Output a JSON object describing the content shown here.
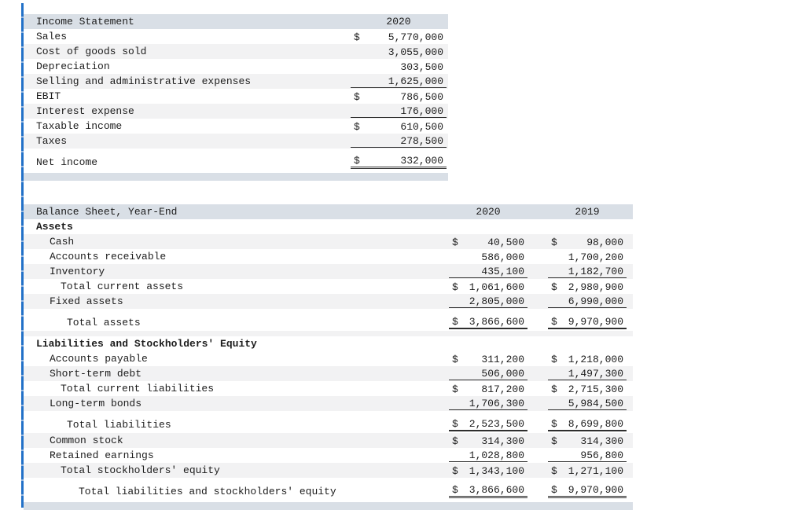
{
  "accent_colors": {
    "left_line_blue": "#2271c8",
    "header_band": "#d9dfe6",
    "row_stripe": "#f2f2f3"
  },
  "income_statement": {
    "title": "Income Statement",
    "year": "2020",
    "rows": [
      {
        "label": "Sales",
        "indent": 0,
        "values": [
          {
            "d": true,
            "v": "5,770,000"
          }
        ]
      },
      {
        "label": "Cost of goods sold",
        "indent": 0,
        "values": [
          {
            "d": false,
            "v": "3,055,000"
          }
        ]
      },
      {
        "label": "Depreciation",
        "indent": 0,
        "values": [
          {
            "d": false,
            "v": "303,500"
          }
        ]
      },
      {
        "label": "Selling and administrative expenses",
        "indent": 0,
        "values": [
          {
            "d": false,
            "v": "1,625,000",
            "u": "s"
          }
        ]
      },
      {
        "label": "EBIT",
        "indent": 0,
        "values": [
          {
            "d": true,
            "v": "786,500"
          }
        ]
      },
      {
        "label": "Interest expense",
        "indent": 0,
        "values": [
          {
            "d": false,
            "v": "176,000",
            "u": "s"
          }
        ]
      },
      {
        "label": "Taxable income",
        "indent": 0,
        "values": [
          {
            "d": true,
            "v": "610,500"
          }
        ]
      },
      {
        "label": "Taxes",
        "indent": 0,
        "values": [
          {
            "d": false,
            "v": "278,500",
            "u": "s"
          }
        ]
      },
      {
        "label": "Net income",
        "indent": 0,
        "gap": true,
        "tall": true,
        "values": [
          {
            "d": true,
            "v": "332,000",
            "u": "d"
          }
        ]
      }
    ]
  },
  "balance_sheet": {
    "title": "Balance Sheet, Year-End",
    "years": [
      "2020",
      "2019"
    ],
    "rows": [
      {
        "label": "Assets",
        "bold": true,
        "indent": 0,
        "values": [
          {},
          {}
        ]
      },
      {
        "label": "Cash",
        "indent": 1,
        "values": [
          {
            "d": true,
            "v": "40,500"
          },
          {
            "d": true,
            "v": "98,000"
          }
        ]
      },
      {
        "label": "Accounts receivable",
        "indent": 1,
        "values": [
          {
            "d": false,
            "v": "586,000"
          },
          {
            "d": false,
            "v": "1,700,200"
          }
        ]
      },
      {
        "label": "Inventory",
        "indent": 1,
        "values": [
          {
            "d": false,
            "v": "435,100",
            "u": "s"
          },
          {
            "d": false,
            "v": "1,182,700",
            "u": "s"
          }
        ]
      },
      {
        "label": "Total current assets",
        "indent": 2,
        "values": [
          {
            "d": true,
            "v": "1,061,600"
          },
          {
            "d": true,
            "v": "2,980,900"
          }
        ]
      },
      {
        "label": "Fixed assets",
        "indent": 1,
        "values": [
          {
            "d": false,
            "v": "2,805,000",
            "u": "s"
          },
          {
            "d": false,
            "v": "6,990,000",
            "u": "s"
          }
        ]
      },
      {
        "label": "Total assets",
        "indent": 3,
        "gap": true,
        "tall": true,
        "values": [
          {
            "d": true,
            "v": "3,866,600",
            "u": "t"
          },
          {
            "d": true,
            "v": "9,970,900",
            "u": "t"
          }
        ]
      },
      {
        "spacer": true
      },
      {
        "label": "Liabilities and Stockholders' Equity",
        "bold": true,
        "indent": 0,
        "values": [
          {},
          {}
        ]
      },
      {
        "label": "Accounts payable",
        "indent": 1,
        "values": [
          {
            "d": true,
            "v": "311,200"
          },
          {
            "d": true,
            "v": "1,218,000"
          }
        ]
      },
      {
        "label": "Short-term debt",
        "indent": 1,
        "values": [
          {
            "d": false,
            "v": "506,000",
            "u": "s"
          },
          {
            "d": false,
            "v": "1,497,300",
            "u": "s"
          }
        ]
      },
      {
        "label": "Total current liabilities",
        "indent": 2,
        "values": [
          {
            "d": true,
            "v": "817,200"
          },
          {
            "d": true,
            "v": "2,715,300"
          }
        ]
      },
      {
        "label": "Long-term bonds",
        "indent": 1,
        "values": [
          {
            "d": false,
            "v": "1,706,300",
            "u": "s"
          },
          {
            "d": false,
            "v": "5,984,500",
            "u": "s"
          }
        ]
      },
      {
        "label": "Total liabilities",
        "indent": 3,
        "gap": true,
        "tall": true,
        "values": [
          {
            "d": true,
            "v": "2,523,500",
            "u": "t"
          },
          {
            "d": true,
            "v": "8,699,800",
            "u": "t"
          }
        ]
      },
      {
        "label": "Common stock",
        "indent": 1,
        "values": [
          {
            "d": true,
            "v": "314,300"
          },
          {
            "d": true,
            "v": "314,300"
          }
        ]
      },
      {
        "label": "Retained earnings",
        "indent": 1,
        "values": [
          {
            "d": false,
            "v": "1,028,800",
            "u": "s"
          },
          {
            "d": false,
            "v": "956,800",
            "u": "s"
          }
        ]
      },
      {
        "label": "Total stockholders' equity",
        "indent": 2,
        "values": [
          {
            "d": true,
            "v": "1,343,100"
          },
          {
            "d": true,
            "v": "1,271,100"
          }
        ]
      },
      {
        "label": "Total liabilities and stockholders' equity",
        "indent": 4,
        "gap": true,
        "tall": true,
        "values": [
          {
            "d": true,
            "v": "3,866,600",
            "u": "d"
          },
          {
            "d": true,
            "v": "9,970,900",
            "u": "d"
          }
        ]
      }
    ]
  }
}
